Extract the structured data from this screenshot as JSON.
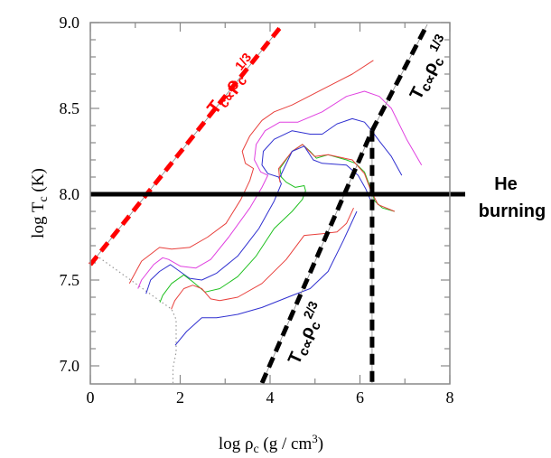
{
  "chart_data": {
    "type": "line",
    "title": "",
    "xlabel": {
      "pre": "log ρ",
      "sub": "c",
      "mid": " (g / cm",
      "sup": "3",
      "post": ")"
    },
    "ylabel": {
      "pre": "log T",
      "sub": "c",
      "post": " (K)"
    },
    "xlim": [
      0,
      8
    ],
    "ylim": [
      6.9,
      9.0
    ],
    "xticks": [
      "0",
      "2",
      "4",
      "6",
      "8"
    ],
    "xtick_values": [
      0,
      2,
      4,
      6,
      8
    ],
    "yticks": [
      "7.0",
      "7.5",
      "8.0",
      "8.5",
      "9.0"
    ],
    "ytick_values": [
      7.0,
      7.5,
      8.0,
      8.5,
      9.0
    ],
    "minor_x_step": 1,
    "minor_y_step": 0.1,
    "colors": {
      "red": "#e8403c",
      "magenta": "#e040e0",
      "blue": "#3030d0",
      "green": "#20c020",
      "dash_red": "#ff0000",
      "dotted": "#999999"
    },
    "series": [
      {
        "name": "red-upper",
        "color": "red",
        "points": [
          [
            0.87,
            7.48
          ],
          [
            1.14,
            7.61
          ],
          [
            1.54,
            7.69
          ],
          [
            1.81,
            7.68
          ],
          [
            2.21,
            7.69
          ],
          [
            2.61,
            7.75
          ],
          [
            3.02,
            7.83
          ],
          [
            3.35,
            7.97
          ],
          [
            3.55,
            8.08
          ],
          [
            3.63,
            8.15
          ],
          [
            3.45,
            8.18
          ],
          [
            3.38,
            8.25
          ],
          [
            3.55,
            8.34
          ],
          [
            3.82,
            8.43
          ],
          [
            4.09,
            8.48
          ],
          [
            4.49,
            8.52
          ],
          [
            5.16,
            8.61
          ],
          [
            5.83,
            8.7
          ],
          [
            6.3,
            8.78
          ]
        ]
      },
      {
        "name": "magenta",
        "color": "magenta",
        "points": [
          [
            1.06,
            7.45
          ],
          [
            1.14,
            7.5
          ],
          [
            1.41,
            7.59
          ],
          [
            1.61,
            7.63
          ],
          [
            1.74,
            7.62
          ],
          [
            2.01,
            7.58
          ],
          [
            2.35,
            7.57
          ],
          [
            2.68,
            7.62
          ],
          [
            3.08,
            7.75
          ],
          [
            3.55,
            7.92
          ],
          [
            3.82,
            8.04
          ],
          [
            3.95,
            8.11
          ],
          [
            3.79,
            8.13
          ],
          [
            3.65,
            8.2
          ],
          [
            3.69,
            8.29
          ],
          [
            3.89,
            8.37
          ],
          [
            4.22,
            8.42
          ],
          [
            4.62,
            8.42
          ],
          [
            5.16,
            8.48
          ],
          [
            5.7,
            8.57
          ],
          [
            6.1,
            8.6
          ],
          [
            6.43,
            8.57
          ],
          [
            6.7,
            8.5
          ],
          [
            7.04,
            8.32
          ],
          [
            7.37,
            8.17
          ]
        ]
      },
      {
        "name": "blue-upper",
        "color": "blue",
        "points": [
          [
            1.24,
            7.42
          ],
          [
            1.34,
            7.5
          ],
          [
            1.54,
            7.55
          ],
          [
            1.78,
            7.59
          ],
          [
            1.94,
            7.56
          ],
          [
            2.21,
            7.51
          ],
          [
            2.48,
            7.5
          ],
          [
            2.81,
            7.54
          ],
          [
            3.28,
            7.64
          ],
          [
            3.75,
            7.8
          ],
          [
            4.09,
            7.96
          ],
          [
            4.25,
            8.06
          ],
          [
            4.19,
            8.1
          ],
          [
            3.95,
            8.12
          ],
          [
            3.82,
            8.17
          ],
          [
            3.85,
            8.25
          ],
          [
            4.09,
            8.32
          ],
          [
            4.49,
            8.37
          ],
          [
            4.89,
            8.35
          ],
          [
            5.16,
            8.35
          ],
          [
            5.49,
            8.41
          ],
          [
            5.83,
            8.44
          ],
          [
            6.1,
            8.42
          ],
          [
            6.26,
            8.37
          ],
          [
            6.43,
            8.31
          ],
          [
            6.7,
            8.22
          ],
          [
            6.93,
            8.11
          ]
        ]
      },
      {
        "name": "green",
        "color": "green",
        "points": [
          [
            1.55,
            7.37
          ],
          [
            1.61,
            7.41
          ],
          [
            1.81,
            7.48
          ],
          [
            2.08,
            7.53
          ],
          [
            2.28,
            7.49
          ],
          [
            2.55,
            7.43
          ],
          [
            2.88,
            7.45
          ],
          [
            3.28,
            7.52
          ],
          [
            3.69,
            7.64
          ],
          [
            4.09,
            7.8
          ],
          [
            4.49,
            7.9
          ],
          [
            4.72,
            7.97
          ],
          [
            4.79,
            8.02
          ],
          [
            4.76,
            8.05
          ],
          [
            4.56,
            8.04
          ],
          [
            4.36,
            8.07
          ],
          [
            4.25,
            8.1
          ],
          [
            4.22,
            8.15
          ],
          [
            4.49,
            8.25
          ],
          [
            4.72,
            8.29
          ],
          [
            4.89,
            8.25
          ],
          [
            5.03,
            8.21
          ],
          [
            5.29,
            8.23
          ],
          [
            5.7,
            8.2
          ],
          [
            5.9,
            8.18
          ],
          [
            6.1,
            8.13
          ],
          [
            6.23,
            8.04
          ],
          [
            6.33,
            7.96
          ],
          [
            6.5,
            7.92
          ],
          [
            6.77,
            7.9
          ]
        ]
      },
      {
        "name": "red-loop",
        "color": "red",
        "points": [
          [
            4.22,
            8.07
          ],
          [
            4.19,
            8.15
          ],
          [
            4.49,
            8.25
          ],
          [
            4.72,
            8.29
          ],
          [
            4.99,
            8.22
          ],
          [
            5.29,
            8.23
          ],
          [
            5.83,
            8.2
          ],
          [
            6.1,
            8.12
          ],
          [
            6.23,
            8.03
          ],
          [
            6.4,
            7.94
          ],
          [
            6.77,
            7.9
          ]
        ]
      },
      {
        "name": "blue-loop",
        "color": "blue",
        "points": [
          [
            4.22,
            8.1
          ],
          [
            4.49,
            8.25
          ],
          [
            4.76,
            8.28
          ],
          [
            4.96,
            8.2
          ],
          [
            5.16,
            8.18
          ],
          [
            5.7,
            8.17
          ],
          [
            5.96,
            8.11
          ],
          [
            6.13,
            8.03
          ],
          [
            6.23,
            7.97
          ]
        ]
      },
      {
        "name": "red-lower",
        "color": "red",
        "points": [
          [
            1.8,
            7.33
          ],
          [
            1.88,
            7.38
          ],
          [
            2.08,
            7.45
          ],
          [
            2.28,
            7.47
          ],
          [
            2.48,
            7.45
          ],
          [
            2.68,
            7.39
          ],
          [
            2.88,
            7.38
          ],
          [
            3.28,
            7.4
          ],
          [
            3.82,
            7.48
          ],
          [
            4.36,
            7.62
          ],
          [
            4.76,
            7.76
          ],
          [
            5.16,
            7.77
          ],
          [
            5.49,
            7.78
          ],
          [
            5.7,
            7.83
          ],
          [
            5.86,
            7.92
          ]
        ]
      },
      {
        "name": "blue-lower",
        "color": "blue",
        "points": [
          [
            1.89,
            7.12
          ],
          [
            2.14,
            7.2
          ],
          [
            2.48,
            7.28
          ],
          [
            2.81,
            7.28
          ],
          [
            3.28,
            7.3
          ],
          [
            3.82,
            7.34
          ],
          [
            4.49,
            7.41
          ],
          [
            4.89,
            7.45
          ],
          [
            5.29,
            7.55
          ],
          [
            5.63,
            7.73
          ],
          [
            5.93,
            7.9
          ]
        ]
      }
    ],
    "dotted_boundary": [
      [
        0.2,
        7.63
      ],
      [
        1.81,
        7.33
      ],
      [
        1.91,
        7.27
      ],
      [
        1.91,
        7.08
      ],
      [
        1.84,
        6.99
      ],
      [
        1.84,
        6.9
      ]
    ],
    "reference_lines": {
      "red_one_third": [
        [
          0.0,
          7.59
        ],
        [
          4.22,
          8.97
        ]
      ],
      "black_two_thirds": [
        [
          3.82,
          6.9
        ],
        [
          6.27,
          8.37
        ]
      ],
      "black_one_third": [
        [
          6.27,
          8.37
        ],
        [
          7.5,
          8.99
        ]
      ],
      "black_vertical": [
        [
          6.27,
          8.37
        ],
        [
          6.27,
          6.9
        ]
      ],
      "he_burning": 8.0
    },
    "annotations": {
      "red_label": {
        "t": "T",
        "sub": "c",
        "prop": "∝",
        "rho": "ρ",
        "sub2": "c",
        "exp": " 1/3"
      },
      "black_upper_label": {
        "t": "T",
        "sub": "c",
        "prop": "∝",
        "rho": "ρ",
        "sub2": "c",
        "exp": " 1/3"
      },
      "black_lower_label": {
        "t": "T",
        "sub": "c",
        "prop": "∝",
        "rho": "ρ",
        "sub2": "c",
        "exp": "2/3"
      },
      "he_line1": "He",
      "he_line2": "burning"
    }
  }
}
